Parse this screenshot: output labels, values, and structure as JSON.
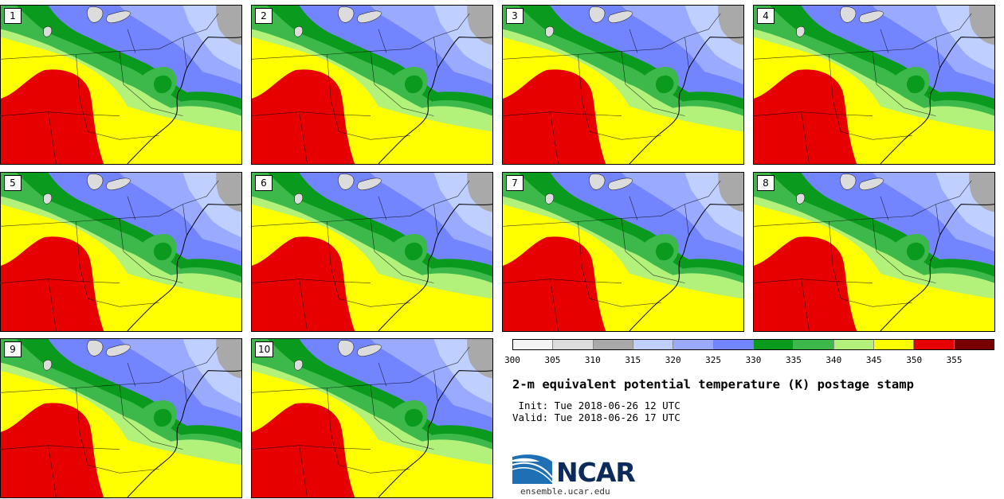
{
  "panels": [
    {
      "label": "1"
    },
    {
      "label": "2"
    },
    {
      "label": "3"
    },
    {
      "label": "4"
    },
    {
      "label": "5"
    },
    {
      "label": "6"
    },
    {
      "label": "7"
    },
    {
      "label": "8"
    },
    {
      "label": "9"
    },
    {
      "label": "10"
    }
  ],
  "colorbar": {
    "ticks": [
      "300",
      "305",
      "310",
      "315",
      "320",
      "325",
      "330",
      "335",
      "340",
      "345",
      "350",
      "355"
    ],
    "colors": [
      "#f5f5f5",
      "#dcdcdc",
      "#a9a9a9",
      "#bfcfff",
      "#99aaff",
      "#7384ff",
      "#0a9a1e",
      "#3cb94a",
      "#b2f27a",
      "#ffff00",
      "#e60000",
      "#7a0000"
    ]
  },
  "title": "2-m equivalent potential temperature (K) postage stamp",
  "init": " Init: Tue 2018-06-26 12 UTC",
  "valid": "Valid: Tue 2018-06-26 17 UTC",
  "logo": {
    "text": "NCAR",
    "url": "ensemble.ucar.edu"
  },
  "colors": {
    "hot": "#e60000",
    "warm": "#ffff00",
    "mild": "#b2f27a",
    "green": "#3cb94a",
    "dkgreen": "#0a9a1e",
    "blue": "#7384ff",
    "ltblue": "#99aaff",
    "paleblue": "#bfcfff",
    "gray": "#a9a9a9",
    "lake": "#dcdcdc"
  }
}
